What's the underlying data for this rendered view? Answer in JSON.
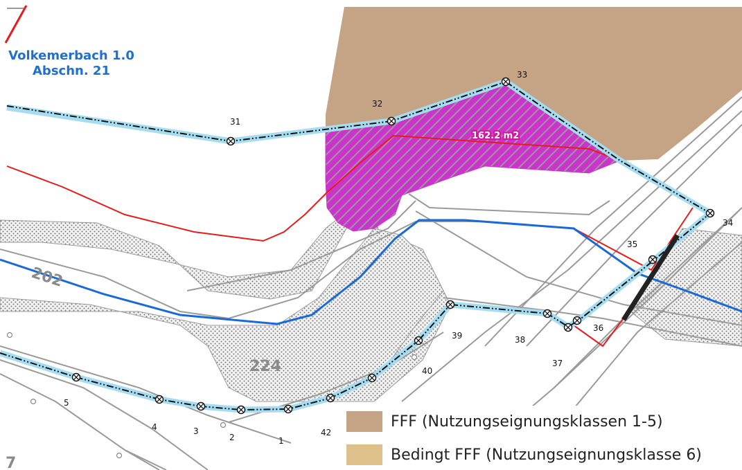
{
  "map": {
    "stream_name": "Volkemerbach 1.0",
    "stream_section": "Abschn. 21",
    "area_label": "162.2 m2",
    "parcel_labels": [
      "202",
      "224",
      "7"
    ],
    "point_labels": [
      "31",
      "32",
      "33",
      "34",
      "35",
      "36",
      "37",
      "38",
      "39",
      "40",
      "42",
      "1",
      "2",
      "3",
      "4",
      "5"
    ],
    "colors": {
      "fff_fill": "#c4a484",
      "bedingt_fill": "#dec18a",
      "hatch_fill": "#cc33cc",
      "waterway": "#1a6ad6",
      "buffer": "#a6dcf0",
      "red_line": "#e61b1b",
      "dotted_area": "#e6e6e6"
    }
  },
  "legend": {
    "items": [
      {
        "label": "FFF (Nutzungseignungsklassen 1-5)",
        "color": "#c4a484"
      },
      {
        "label": "Bedingt FFF (Nutzungseignungsklasse 6)",
        "color": "#dec18a"
      }
    ]
  }
}
